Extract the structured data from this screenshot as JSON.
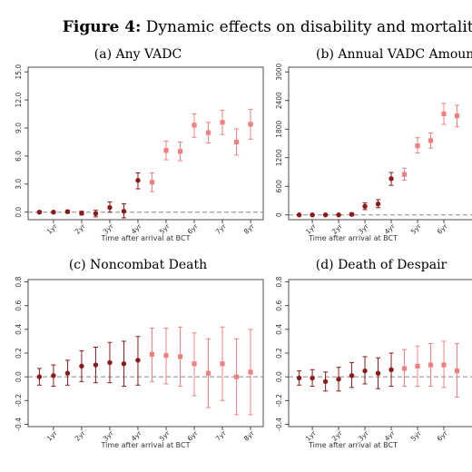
{
  "figure": {
    "label": "Figure 4:",
    "title": "Dynamic effects on disability and mortality"
  },
  "colors": {
    "pre": "#8b1a1a",
    "post": "#f08080",
    "baseline": "#888888"
  },
  "chart_data": [
    {
      "id": "a",
      "type": "scatter",
      "title": "(a) Any VADC",
      "xlabel": "Time after arrival at BCT",
      "ylim": [
        -0.8,
        15.5
      ],
      "yticks": [
        0.0,
        3.0,
        6.0,
        9.0,
        12.0,
        15.0
      ],
      "ytick_labels": [
        "0.0",
        "3.0",
        "6.0",
        "9.0",
        "12.0",
        "15.0"
      ],
      "xtick_labels": [
        "1yr",
        "2yr",
        "3yr",
        "4yr",
        "5yr",
        "6yr",
        "7yr",
        "8yr"
      ],
      "points": [
        {
          "x": 0.5,
          "y": 0.0,
          "lo": -0.1,
          "hi": 0.1,
          "g": "pre"
        },
        {
          "x": 1.0,
          "y": 0.0,
          "lo": -0.1,
          "hi": 0.1,
          "g": "pre"
        },
        {
          "x": 1.5,
          "y": 0.05,
          "lo": -0.1,
          "hi": 0.2,
          "g": "pre"
        },
        {
          "x": 2.0,
          "y": -0.1,
          "lo": -0.3,
          "hi": 0.1,
          "g": "pre"
        },
        {
          "x": 2.5,
          "y": -0.15,
          "lo": -0.5,
          "hi": 0.2,
          "g": "pre"
        },
        {
          "x": 3.0,
          "y": 0.5,
          "lo": 0.0,
          "hi": 1.1,
          "g": "pre"
        },
        {
          "x": 3.5,
          "y": 0.1,
          "lo": -0.6,
          "hi": 0.9,
          "g": "pre"
        },
        {
          "x": 4.0,
          "y": 3.4,
          "lo": 2.5,
          "hi": 4.2,
          "g": "pre"
        },
        {
          "x": 4.5,
          "y": 3.2,
          "lo": 2.2,
          "hi": 4.2,
          "g": "post"
        },
        {
          "x": 5.0,
          "y": 6.6,
          "lo": 5.6,
          "hi": 7.6,
          "g": "post"
        },
        {
          "x": 5.5,
          "y": 6.5,
          "lo": 5.5,
          "hi": 7.5,
          "g": "post"
        },
        {
          "x": 6.0,
          "y": 9.3,
          "lo": 8.0,
          "hi": 10.5,
          "g": "post"
        },
        {
          "x": 6.5,
          "y": 8.5,
          "lo": 7.4,
          "hi": 9.6,
          "g": "post"
        },
        {
          "x": 7.0,
          "y": 9.6,
          "lo": 8.3,
          "hi": 10.9,
          "g": "post"
        },
        {
          "x": 7.5,
          "y": 7.5,
          "lo": 6.1,
          "hi": 8.9,
          "g": "post"
        },
        {
          "x": 8.0,
          "y": 9.4,
          "lo": 7.8,
          "hi": 11.0,
          "g": "post"
        }
      ]
    },
    {
      "id": "b",
      "type": "scatter",
      "title": "(b) Annual VADC Amount",
      "xlabel": "Time after arrival at BCT",
      "ylim": [
        -100,
        3100
      ],
      "yticks": [
        0,
        600,
        1200,
        1800,
        2400,
        3000
      ],
      "ytick_labels": [
        "0",
        "600",
        "1200",
        "1800",
        "2400",
        "3000"
      ],
      "xtick_labels": [
        "1yr",
        "2yr",
        "3yr",
        "4yr",
        "5yr",
        "6yr"
      ],
      "points": [
        {
          "x": 0.5,
          "y": 0,
          "lo": -10,
          "hi": 10,
          "g": "pre"
        },
        {
          "x": 1.0,
          "y": 0,
          "lo": -10,
          "hi": 10,
          "g": "pre"
        },
        {
          "x": 1.5,
          "y": 0,
          "lo": -10,
          "hi": 10,
          "g": "pre"
        },
        {
          "x": 2.0,
          "y": 0,
          "lo": -10,
          "hi": 10,
          "g": "pre"
        },
        {
          "x": 2.5,
          "y": 10,
          "lo": -10,
          "hi": 40,
          "g": "pre"
        },
        {
          "x": 3.0,
          "y": 180,
          "lo": 110,
          "hi": 250,
          "g": "pre"
        },
        {
          "x": 3.5,
          "y": 230,
          "lo": 150,
          "hi": 320,
          "g": "pre"
        },
        {
          "x": 4.0,
          "y": 760,
          "lo": 620,
          "hi": 890,
          "g": "pre"
        },
        {
          "x": 4.5,
          "y": 850,
          "lo": 730,
          "hi": 980,
          "g": "post"
        },
        {
          "x": 5.0,
          "y": 1450,
          "lo": 1300,
          "hi": 1620,
          "g": "post"
        },
        {
          "x": 5.5,
          "y": 1560,
          "lo": 1400,
          "hi": 1720,
          "g": "post"
        },
        {
          "x": 6.0,
          "y": 2120,
          "lo": 1900,
          "hi": 2340,
          "g": "post"
        },
        {
          "x": 6.5,
          "y": 2080,
          "lo": 1850,
          "hi": 2300,
          "g": "post"
        }
      ]
    },
    {
      "id": "c",
      "type": "scatter",
      "title": "(c) Noncombat Death",
      "xlabel": "Time after arrival at BCT",
      "ylim": [
        -0.42,
        0.82
      ],
      "yticks": [
        -0.4,
        -0.2,
        0.0,
        0.2,
        0.4,
        0.6,
        0.8
      ],
      "ytick_labels": [
        "-0.4",
        "-0.2",
        "0.0",
        "0.2",
        "0.4",
        "0.6",
        "0.8"
      ],
      "xtick_labels": [
        "1yr",
        "2yr",
        "3yr",
        "4yr",
        "5yr",
        "6yr",
        "7yr",
        "8yr"
      ],
      "points": [
        {
          "x": 0.5,
          "y": 0.0,
          "lo": -0.07,
          "hi": 0.07,
          "g": "pre"
        },
        {
          "x": 1.0,
          "y": 0.01,
          "lo": -0.08,
          "hi": 0.1,
          "g": "pre"
        },
        {
          "x": 1.5,
          "y": 0.03,
          "lo": -0.07,
          "hi": 0.14,
          "g": "pre"
        },
        {
          "x": 2.0,
          "y": 0.09,
          "lo": -0.04,
          "hi": 0.22,
          "g": "pre"
        },
        {
          "x": 2.5,
          "y": 0.1,
          "lo": -0.05,
          "hi": 0.25,
          "g": "pre"
        },
        {
          "x": 3.0,
          "y": 0.12,
          "lo": -0.05,
          "hi": 0.29,
          "g": "pre"
        },
        {
          "x": 3.5,
          "y": 0.11,
          "lo": -0.08,
          "hi": 0.3,
          "g": "pre"
        },
        {
          "x": 4.0,
          "y": 0.14,
          "lo": -0.07,
          "hi": 0.34,
          "g": "pre"
        },
        {
          "x": 4.5,
          "y": 0.19,
          "lo": -0.04,
          "hi": 0.41,
          "g": "post"
        },
        {
          "x": 5.0,
          "y": 0.18,
          "lo": -0.06,
          "hi": 0.41,
          "g": "post"
        },
        {
          "x": 5.5,
          "y": 0.17,
          "lo": -0.08,
          "hi": 0.42,
          "g": "post"
        },
        {
          "x": 6.0,
          "y": 0.11,
          "lo": -0.16,
          "hi": 0.37,
          "g": "post"
        },
        {
          "x": 6.5,
          "y": 0.03,
          "lo": -0.26,
          "hi": 0.32,
          "g": "post"
        },
        {
          "x": 7.0,
          "y": 0.11,
          "lo": -0.2,
          "hi": 0.42,
          "g": "post"
        },
        {
          "x": 7.5,
          "y": 0.0,
          "lo": -0.32,
          "hi": 0.32,
          "g": "post"
        },
        {
          "x": 8.0,
          "y": 0.04,
          "lo": -0.32,
          "hi": 0.4,
          "g": "post"
        }
      ]
    },
    {
      "id": "d",
      "type": "scatter",
      "title": "(d) Death of Despair",
      "xlabel": "Time after arrival at BCT",
      "ylim": [
        -0.42,
        0.82
      ],
      "yticks": [
        -0.4,
        -0.2,
        0.0,
        0.2,
        0.4,
        0.6,
        0.8
      ],
      "ytick_labels": [
        "-0.4",
        "-0.2",
        "0.0",
        "0.2",
        "0.4",
        "0.6",
        "0.8"
      ],
      "xtick_labels": [
        "1yr",
        "2yr",
        "3yr",
        "4yr",
        "5yr",
        "6yr"
      ],
      "points": [
        {
          "x": 0.5,
          "y": -0.01,
          "lo": -0.07,
          "hi": 0.05,
          "g": "pre"
        },
        {
          "x": 1.0,
          "y": -0.01,
          "lo": -0.08,
          "hi": 0.06,
          "g": "pre"
        },
        {
          "x": 1.5,
          "y": -0.04,
          "lo": -0.12,
          "hi": 0.04,
          "g": "pre"
        },
        {
          "x": 2.0,
          "y": -0.02,
          "lo": -0.12,
          "hi": 0.08,
          "g": "pre"
        },
        {
          "x": 2.5,
          "y": 0.01,
          "lo": -0.09,
          "hi": 0.12,
          "g": "pre"
        },
        {
          "x": 3.0,
          "y": 0.05,
          "lo": -0.06,
          "hi": 0.17,
          "g": "pre"
        },
        {
          "x": 3.5,
          "y": 0.03,
          "lo": -0.1,
          "hi": 0.16,
          "g": "pre"
        },
        {
          "x": 4.0,
          "y": 0.06,
          "lo": -0.08,
          "hi": 0.2,
          "g": "pre"
        },
        {
          "x": 4.5,
          "y": 0.07,
          "lo": -0.08,
          "hi": 0.23,
          "g": "post"
        },
        {
          "x": 5.0,
          "y": 0.09,
          "lo": -0.08,
          "hi": 0.26,
          "g": "post"
        },
        {
          "x": 5.5,
          "y": 0.1,
          "lo": -0.08,
          "hi": 0.28,
          "g": "post"
        },
        {
          "x": 6.0,
          "y": 0.1,
          "lo": -0.09,
          "hi": 0.3,
          "g": "post"
        },
        {
          "x": 6.5,
          "y": 0.05,
          "lo": -0.17,
          "hi": 0.28,
          "g": "post"
        }
      ]
    }
  ]
}
